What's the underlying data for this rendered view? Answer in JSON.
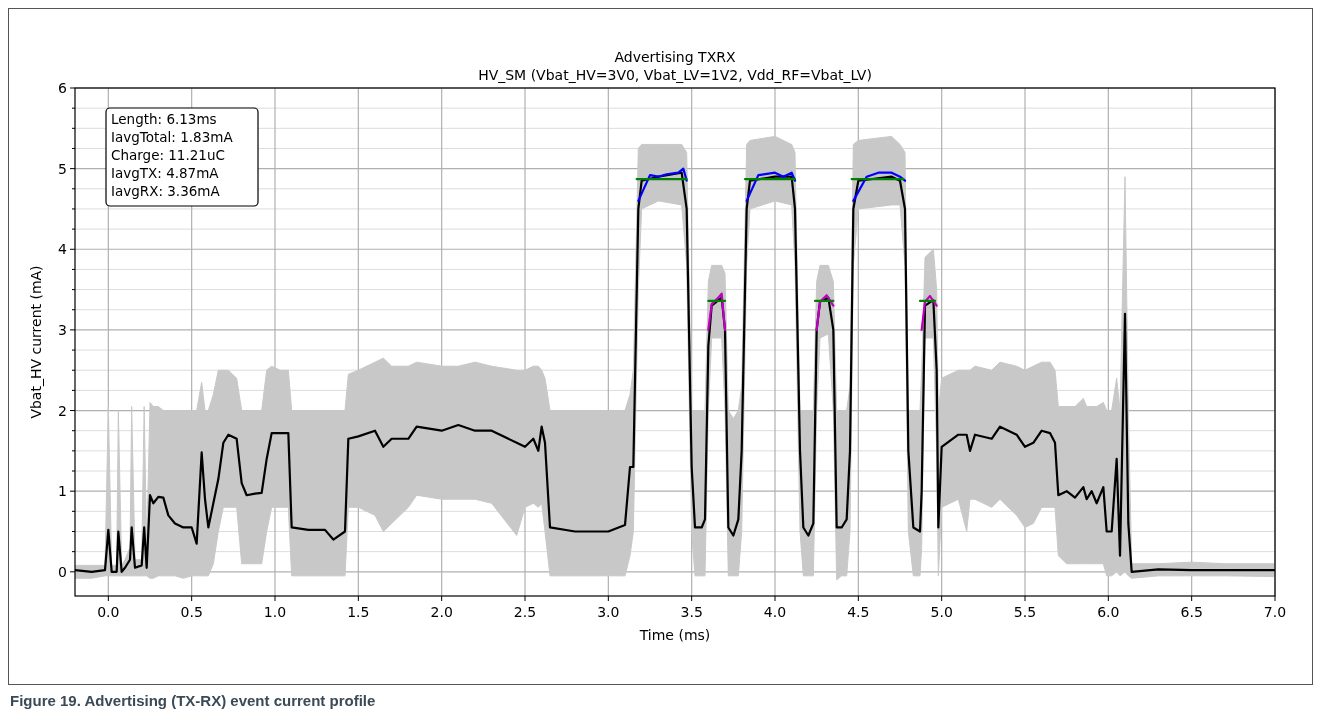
{
  "chart_data": {
    "type": "line",
    "title": "Advertising TXRX",
    "subtitle": "HV_SM (Vbat_HV=3V0,  Vbat_LV=1V2,  Vdd_RF=Vbat_LV)",
    "xlabel": "Time (ms)",
    "ylabel": "Vbat_HV current (mA)",
    "annotations": [
      "Length: 6.13ms",
      "IavgTotal: 1.83mA",
      "Charge: 11.21uC",
      "IavgTX: 4.87mA",
      "IavgRX: 3.36mA",
      "Figure 19.  Advertising (TX-RX) event current profile"
    ],
    "xlim": [
      -0.2,
      7.0
    ],
    "ylim": [
      -0.3,
      6
    ],
    "xticks": [
      {
        "value": 0,
        "label": "0.0"
      },
      {
        "value": 0.5,
        "label": "0.5"
      },
      {
        "value": 1,
        "label": "1.0"
      },
      {
        "value": 1.5,
        "label": "1.5"
      },
      {
        "value": 2,
        "label": "2.0"
      },
      {
        "value": 2.5,
        "label": "2.5"
      },
      {
        "value": 3,
        "label": "3.0"
      },
      {
        "value": 3.5,
        "label": "3.5"
      },
      {
        "value": 4,
        "label": "4.0"
      },
      {
        "value": 4.5,
        "label": "4.5"
      },
      {
        "value": 5,
        "label": "5.0"
      },
      {
        "value": 5.5,
        "label": "5.5"
      },
      {
        "value": 6,
        "label": "6.0"
      },
      {
        "value": 6.5,
        "label": "6.5"
      },
      {
        "value": 7,
        "label": "7.0"
      }
    ],
    "yticks": [
      0,
      {
        "value": 0.25,
        "label": null
      },
      {
        "value": 0.5,
        "label": null
      },
      {
        "value": 0.75,
        "label": null
      },
      1,
      {
        "value": 1.25,
        "label": null
      },
      {
        "value": 1.5,
        "label": null
      },
      {
        "value": 1.75,
        "label": null
      },
      2,
      {
        "value": 2.25,
        "label": null
      },
      {
        "value": 2.5,
        "label": null
      },
      {
        "value": 2.75,
        "label": null
      },
      3,
      {
        "value": 3.25,
        "label": null
      },
      {
        "value": 3.5,
        "label": null
      },
      {
        "value": 3.75,
        "label": null
      },
      4,
      {
        "value": 4.25,
        "label": null
      },
      {
        "value": 4.5,
        "label": null
      },
      {
        "value": 4.75,
        "label": null
      },
      5,
      {
        "value": 5.25,
        "label": null
      },
      {
        "value": 5.5,
        "label": null
      },
      {
        "value": 5.75,
        "label": null
      },
      6
    ],
    "grid": true,
    "line_style": "solid",
    "marker": "none",
    "series": [
      {
        "color": "#000000",
        "x": [
          -0.2,
          -0.1,
          -0.02,
          0.0,
          0.02,
          0.05,
          0.06,
          0.08,
          0.1,
          0.13,
          0.14,
          0.16,
          0.2,
          0.215,
          0.23,
          0.25,
          0.27,
          0.3,
          0.33,
          0.36,
          0.4,
          0.45,
          0.5,
          0.53,
          0.56,
          0.58,
          0.6,
          0.63,
          0.66,
          0.69,
          0.72,
          0.77,
          0.8,
          0.83,
          0.88,
          0.92,
          0.95,
          0.98,
          1.03,
          1.08,
          1.1,
          1.2,
          1.3,
          1.35,
          1.42,
          1.44,
          1.5,
          1.6,
          1.65,
          1.7,
          1.8,
          1.85,
          2.0,
          2.1,
          2.2,
          2.3,
          2.45,
          2.5,
          2.55,
          2.58,
          2.6,
          2.62,
          2.65,
          2.8,
          3.0,
          3.1,
          3.13,
          3.15,
          3.18,
          3.2,
          3.3,
          3.44,
          3.47,
          3.5,
          3.52,
          3.56,
          3.58,
          3.6,
          3.62,
          3.68,
          3.7,
          3.72,
          3.75,
          3.78,
          3.8,
          3.83,
          3.85,
          4.0,
          4.1,
          4.12,
          4.15,
          4.17,
          4.2,
          4.23,
          4.25,
          4.27,
          4.32,
          4.35,
          4.37,
          4.4,
          4.43,
          4.45,
          4.47,
          4.5,
          4.7,
          4.75,
          4.78,
          4.8,
          4.83,
          4.87,
          4.88,
          4.9,
          4.95,
          4.97,
          4.98,
          5.0,
          5.1,
          5.15,
          5.17,
          5.2,
          5.3,
          5.35,
          5.45,
          5.5,
          5.55,
          5.6,
          5.65,
          5.68,
          5.7,
          5.75,
          5.8,
          5.85,
          5.87,
          5.9,
          5.93,
          5.97,
          5.99,
          6.02,
          6.05,
          6.07,
          6.1,
          6.12,
          6.14,
          6.3,
          6.5,
          6.7,
          7.0
        ],
        "values": [
          0.02,
          0.0,
          0.02,
          0.52,
          0.0,
          0.0,
          0.5,
          0.0,
          0.05,
          0.15,
          0.55,
          0.05,
          0.08,
          0.55,
          0.05,
          0.95,
          0.85,
          0.93,
          0.92,
          0.7,
          0.6,
          0.55,
          0.55,
          0.35,
          1.48,
          0.9,
          0.55,
          0.85,
          1.15,
          1.6,
          1.7,
          1.65,
          1.1,
          0.95,
          0.97,
          0.98,
          1.4,
          1.72,
          1.72,
          1.72,
          0.55,
          0.52,
          0.52,
          0.4,
          0.5,
          1.65,
          1.68,
          1.75,
          1.55,
          1.65,
          1.65,
          1.8,
          1.75,
          1.82,
          1.75,
          1.75,
          1.6,
          1.55,
          1.65,
          1.5,
          1.8,
          1.6,
          0.55,
          0.5,
          0.5,
          0.58,
          1.3,
          1.3,
          4.5,
          4.85,
          4.9,
          4.95,
          4.5,
          1.3,
          0.55,
          0.55,
          0.65,
          2.8,
          3.3,
          3.4,
          3.0,
          0.55,
          0.45,
          0.65,
          1.5,
          4.5,
          4.85,
          4.9,
          4.9,
          4.5,
          1.5,
          0.55,
          0.45,
          0.6,
          3.0,
          3.35,
          3.4,
          3.0,
          0.55,
          0.55,
          0.65,
          1.5,
          4.5,
          4.85,
          4.9,
          4.85,
          4.5,
          1.5,
          0.55,
          0.5,
          1.0,
          3.3,
          3.37,
          2.5,
          0.55,
          1.55,
          1.7,
          1.7,
          1.5,
          1.7,
          1.65,
          1.8,
          1.7,
          1.55,
          1.6,
          1.75,
          1.72,
          1.6,
          0.95,
          1.0,
          0.92,
          1.05,
          0.9,
          1.0,
          0.85,
          1.05,
          0.5,
          0.5,
          1.4,
          0.2,
          3.2,
          0.6,
          0.0,
          0.03,
          0.02,
          0.02,
          0.02
        ],
        "lower": [
          -0.08,
          -0.08,
          -0.05,
          -0.05,
          -0.05,
          -0.05,
          -0.05,
          -0.05,
          -0.05,
          -0.05,
          -0.05,
          -0.05,
          -0.05,
          -0.05,
          -0.05,
          -0.08,
          -0.08,
          -0.05,
          -0.05,
          -0.05,
          -0.05,
          -0.08,
          -0.05,
          -0.05,
          -0.05,
          -0.05,
          -0.05,
          0.1,
          0.5,
          0.8,
          0.8,
          0.8,
          0.1,
          0.1,
          0.1,
          0.1,
          0.5,
          0.8,
          0.8,
          0.8,
          -0.05,
          -0.05,
          -0.05,
          -0.05,
          -0.05,
          0.8,
          0.8,
          0.7,
          0.5,
          0.6,
          0.8,
          0.95,
          0.9,
          0.9,
          0.9,
          0.85,
          0.45,
          0.8,
          0.85,
          0.8,
          0.85,
          0.5,
          -0.05,
          -0.05,
          -0.05,
          -0.05,
          0.2,
          0.5,
          3.5,
          4.5,
          4.6,
          4.55,
          3.8,
          0.5,
          -0.05,
          -0.05,
          -0.05,
          2.0,
          2.9,
          2.9,
          2.0,
          -0.05,
          -0.05,
          -0.05,
          0.5,
          3.8,
          4.5,
          4.6,
          4.55,
          3.8,
          0.5,
          -0.05,
          -0.05,
          -0.05,
          2.0,
          2.9,
          2.95,
          2.0,
          -0.1,
          -0.05,
          -0.05,
          0.5,
          3.8,
          4.5,
          4.55,
          4.55,
          3.8,
          0.5,
          -0.05,
          -0.05,
          0.3,
          2.9,
          2.9,
          1.5,
          -0.05,
          0.8,
          0.9,
          0.5,
          0.9,
          0.9,
          0.8,
          0.9,
          0.7,
          0.55,
          0.6,
          0.8,
          0.8,
          0.8,
          0.2,
          0.1,
          0.1,
          0.1,
          0.1,
          0.1,
          0.1,
          0.1,
          -0.05,
          -0.05,
          0.0,
          -0.05,
          0.0,
          -0.05,
          -0.08,
          -0.05,
          -0.05,
          -0.05,
          -0.06
        ],
        "upper": [
          0.08,
          0.08,
          0.08,
          2.05,
          0.08,
          0.08,
          2.0,
          0.08,
          0.15,
          0.3,
          2.05,
          0.15,
          0.15,
          2.05,
          0.3,
          2.1,
          2.05,
          2.05,
          2.0,
          2.0,
          2.0,
          2.0,
          2.0,
          2.0,
          2.35,
          2.0,
          2.0,
          2.2,
          2.5,
          2.5,
          2.5,
          2.4,
          2.0,
          2.0,
          2.0,
          2.0,
          2.5,
          2.55,
          2.5,
          2.5,
          2.0,
          2.0,
          2.0,
          2.0,
          2.0,
          2.45,
          2.5,
          2.6,
          2.65,
          2.55,
          2.55,
          2.6,
          2.55,
          2.55,
          2.6,
          2.55,
          2.5,
          2.5,
          2.55,
          2.55,
          2.5,
          2.4,
          2.0,
          2.0,
          2.0,
          2.0,
          2.2,
          2.5,
          5.25,
          5.3,
          5.3,
          5.3,
          5.2,
          2.0,
          2.0,
          2.0,
          2.0,
          3.6,
          3.8,
          3.8,
          3.7,
          2.0,
          1.9,
          2.0,
          2.3,
          5.3,
          5.35,
          5.4,
          5.3,
          5.2,
          2.0,
          2.0,
          2.0,
          2.0,
          3.6,
          3.8,
          3.8,
          3.6,
          2.0,
          2.0,
          2.0,
          2.3,
          5.3,
          5.35,
          5.4,
          5.3,
          5.2,
          2.0,
          2.0,
          2.0,
          2.5,
          3.9,
          4.0,
          3.5,
          2.0,
          2.4,
          2.5,
          2.5,
          2.5,
          2.55,
          2.5,
          2.6,
          2.55,
          2.5,
          2.55,
          2.6,
          2.6,
          2.5,
          2.05,
          2.05,
          2.05,
          2.15,
          2.05,
          2.05,
          2.05,
          2.1,
          2.0,
          2.0,
          2.4,
          2.0,
          4.9,
          2.0,
          0.1,
          0.1,
          0.12,
          0.1,
          0.1
        ]
      },
      {
        "color": "#0000ff",
        "x": [
          3.18,
          3.25,
          3.3,
          3.35,
          3.42,
          3.45,
          3.47,
          3.6,
          3.83,
          3.9,
          4.0,
          4.05,
          4.1,
          4.12,
          4.3,
          4.47,
          4.55,
          4.62,
          4.7,
          4.75,
          4.78
        ],
        "values": [
          4.6,
          4.92,
          4.9,
          4.93,
          4.95,
          5.0,
          4.85,
          null,
          4.6,
          4.92,
          4.95,
          4.9,
          4.95,
          4.85,
          null,
          4.6,
          4.9,
          4.95,
          4.95,
          4.9,
          4.85
        ]
      },
      {
        "color": "#bf00bf",
        "x": [
          3.6,
          3.62,
          3.66,
          3.68,
          3.7,
          3.9,
          4.25,
          4.27,
          4.31,
          4.35,
          4.6,
          4.88,
          4.9,
          4.93,
          4.97
        ],
        "values": [
          3.0,
          3.32,
          3.4,
          3.45,
          3.0,
          null,
          3.0,
          3.35,
          3.43,
          3.3,
          null,
          3.0,
          3.35,
          3.42,
          3.3
        ]
      },
      {
        "color": "#008000",
        "x": [
          3.17,
          3.47,
          3.55,
          3.6,
          3.7,
          3.76,
          3.82,
          4.12,
          4.18,
          4.24,
          4.35,
          4.4,
          4.46,
          4.77,
          4.82,
          4.87,
          4.96
        ],
        "values": [
          4.87,
          4.87,
          null,
          3.36,
          3.36,
          null,
          4.87,
          4.87,
          null,
          3.36,
          3.36,
          null,
          4.87,
          4.87,
          null,
          3.36,
          3.36
        ]
      }
    ]
  }
}
